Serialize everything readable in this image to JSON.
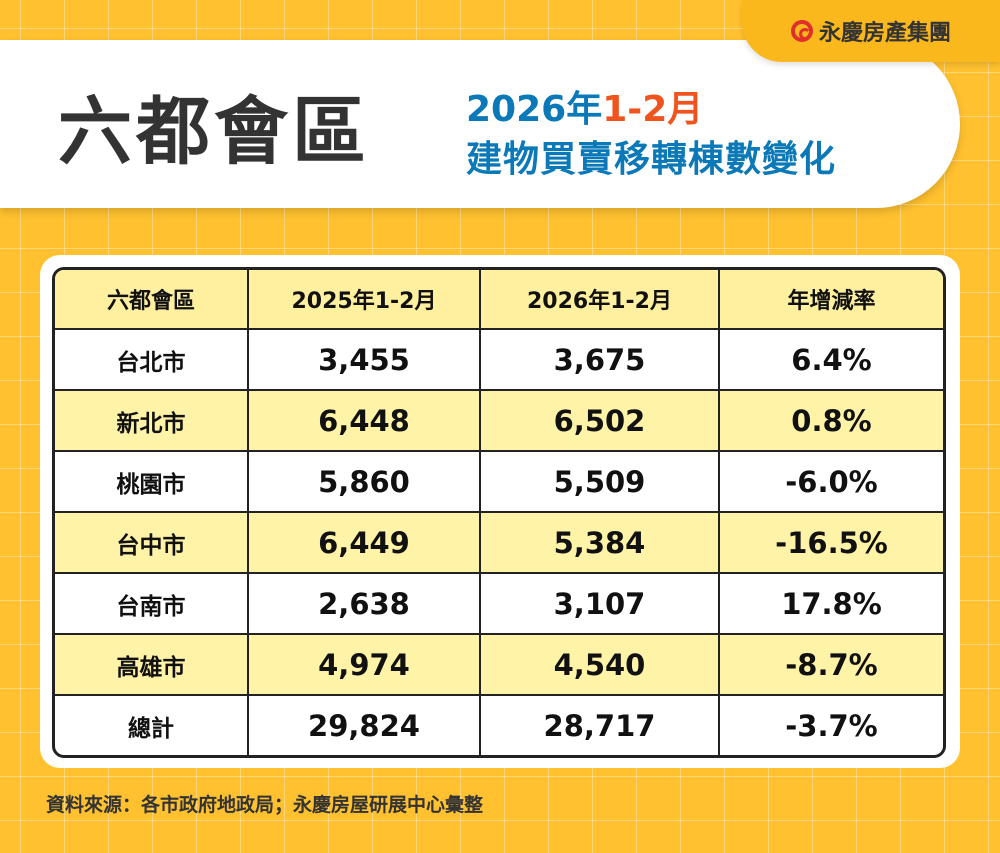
{
  "logo": {
    "text": "永慶房產集團",
    "color": "#E0302A"
  },
  "header": {
    "title": "六都會區",
    "subtitle_year": "2026年",
    "subtitle_period": "1-2月",
    "subtitle_line2": "建物買賣移轉棟數變化"
  },
  "chart_data": {
    "type": "table",
    "columns": [
      "六都會區",
      "2025年1-2月",
      "2026年1-2月",
      "年增減率"
    ],
    "rows": [
      [
        "台北市",
        "3,455",
        "3,675",
        "6.4%"
      ],
      [
        "新北市",
        "6,448",
        "6,502",
        "0.8%"
      ],
      [
        "桃園市",
        "5,860",
        "5,509",
        "-6.0%"
      ],
      [
        "台中市",
        "6,449",
        "5,384",
        "-16.5%"
      ],
      [
        "台南市",
        "2,638",
        "3,107",
        "17.8%"
      ],
      [
        "高雄市",
        "4,974",
        "4,540",
        "-8.7%"
      ],
      [
        "總計",
        "29,824",
        "28,717",
        "-3.7%"
      ]
    ]
  },
  "source": "資料來源：各市政府地政局；永慶房屋研展中心彙整",
  "colors": {
    "background": "#FFC12F",
    "title_blue": "#0B78B8",
    "accent_orange": "#F0541E",
    "row_highlight": "#FFF3A8"
  }
}
